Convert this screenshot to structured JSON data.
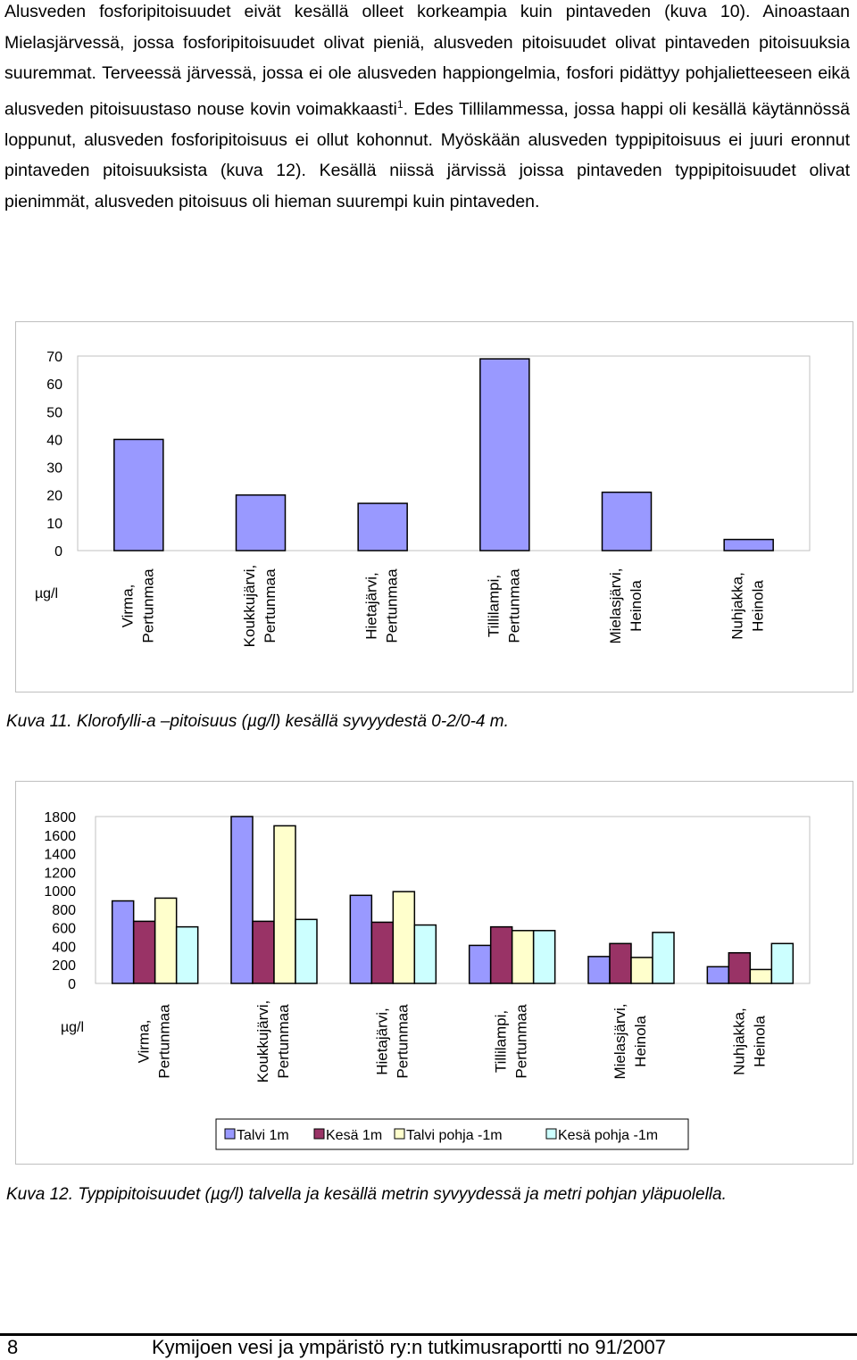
{
  "body_text": {
    "p1": "Alusveden fosforipitoisuudet eivät kesällä olleet korkeampia kuin pintaveden (kuva 10). Ainoastaan Mielasjärvessä, jossa fosforipitoisuudet olivat pieniä, alusveden pitoisuudet olivat pintaveden pitoisuuksia suuremmat. Terveessä järvessä, jossa ei ole alusveden happiongelmia, fosfori pidättyy pohjalietteeseen eikä alusveden pitoisuustaso nouse kovin voimakkaasti",
    "p1_sup": "1",
    "p1_rest": ". Edes Tillilammessa, jossa happi oli kesällä käytännössä loppunut, alusveden fosforipitoisuus ei ollut kohonnut. Myöskään alusveden typpipitoisuus ei juuri eronnut pintaveden pitoisuuksista (kuva 12). Kesällä niissä järvissä joissa pintaveden typpipitoisuudet olivat pienimmät, alusveden pitoisuus oli hieman suurempi kuin pintaveden."
  },
  "captions": {
    "kuva11": "Kuva 11. Klorofylli-a –pitoisuus (µg/l) kesällä syvyydestä 0-2/0-4 m.",
    "kuva12": "Kuva 12. Typpipitoisuudet (µg/l) talvella ja kesällä metrin syvyydessä ja metri pohjan yläpuolella."
  },
  "footer": {
    "page_number": "8",
    "title": "Kymijoen vesi ja ympäristö ry:n tutkimusraportti no 91/2007"
  },
  "chart_data": [
    {
      "type": "bar",
      "unit_label": "µg/l",
      "categories": [
        [
          "Virma,",
          "Pertunmaa"
        ],
        [
          "Koukkujärvi,",
          "Pertunmaa"
        ],
        [
          "Hietajärvi,",
          "Pertunmaa"
        ],
        [
          "Tillilampi,",
          "Pertunmaa"
        ],
        [
          "Mielasjärvi,",
          "Heinola"
        ],
        [
          "Nuhjakka,",
          "Heinola"
        ]
      ],
      "series": [
        {
          "values": [
            40,
            20,
            17,
            69,
            21,
            4
          ],
          "color": "#9999ff"
        }
      ],
      "ylim": [
        0,
        70
      ],
      "yticks": [
        0,
        10,
        20,
        30,
        40,
        50,
        60,
        70
      ],
      "grid": false
    },
    {
      "type": "bar",
      "unit_label": "µg/l",
      "categories": [
        [
          "Virma,",
          "Pertunmaa"
        ],
        [
          "Koukkujärvi,",
          "Pertunmaa"
        ],
        [
          "Hietajärvi,",
          "Pertunmaa"
        ],
        [
          "Tillilampi,",
          "Pertunmaa"
        ],
        [
          "Mielasjärvi,",
          "Heinola"
        ],
        [
          "Nuhjakka,",
          "Heinola"
        ]
      ],
      "series": [
        {
          "name": "Talvi 1m",
          "values": [
            890,
            1800,
            950,
            410,
            290,
            180
          ],
          "color": "#9999ff"
        },
        {
          "name": "Kesä 1m",
          "values": [
            670,
            670,
            660,
            610,
            430,
            330
          ],
          "color": "#993366"
        },
        {
          "name": "Talvi pohja -1m",
          "values": [
            920,
            1700,
            990,
            570,
            280,
            150
          ],
          "color": "#ffffcc"
        },
        {
          "name": "Kesä pohja -1m",
          "values": [
            610,
            690,
            630,
            570,
            550,
            430
          ],
          "color": "#ccffff"
        }
      ],
      "ylim": [
        0,
        1800
      ],
      "yticks": [
        0,
        200,
        400,
        600,
        800,
        1000,
        1200,
        1400,
        1600,
        1800
      ],
      "legend_position": "bottom",
      "grid": false
    }
  ]
}
